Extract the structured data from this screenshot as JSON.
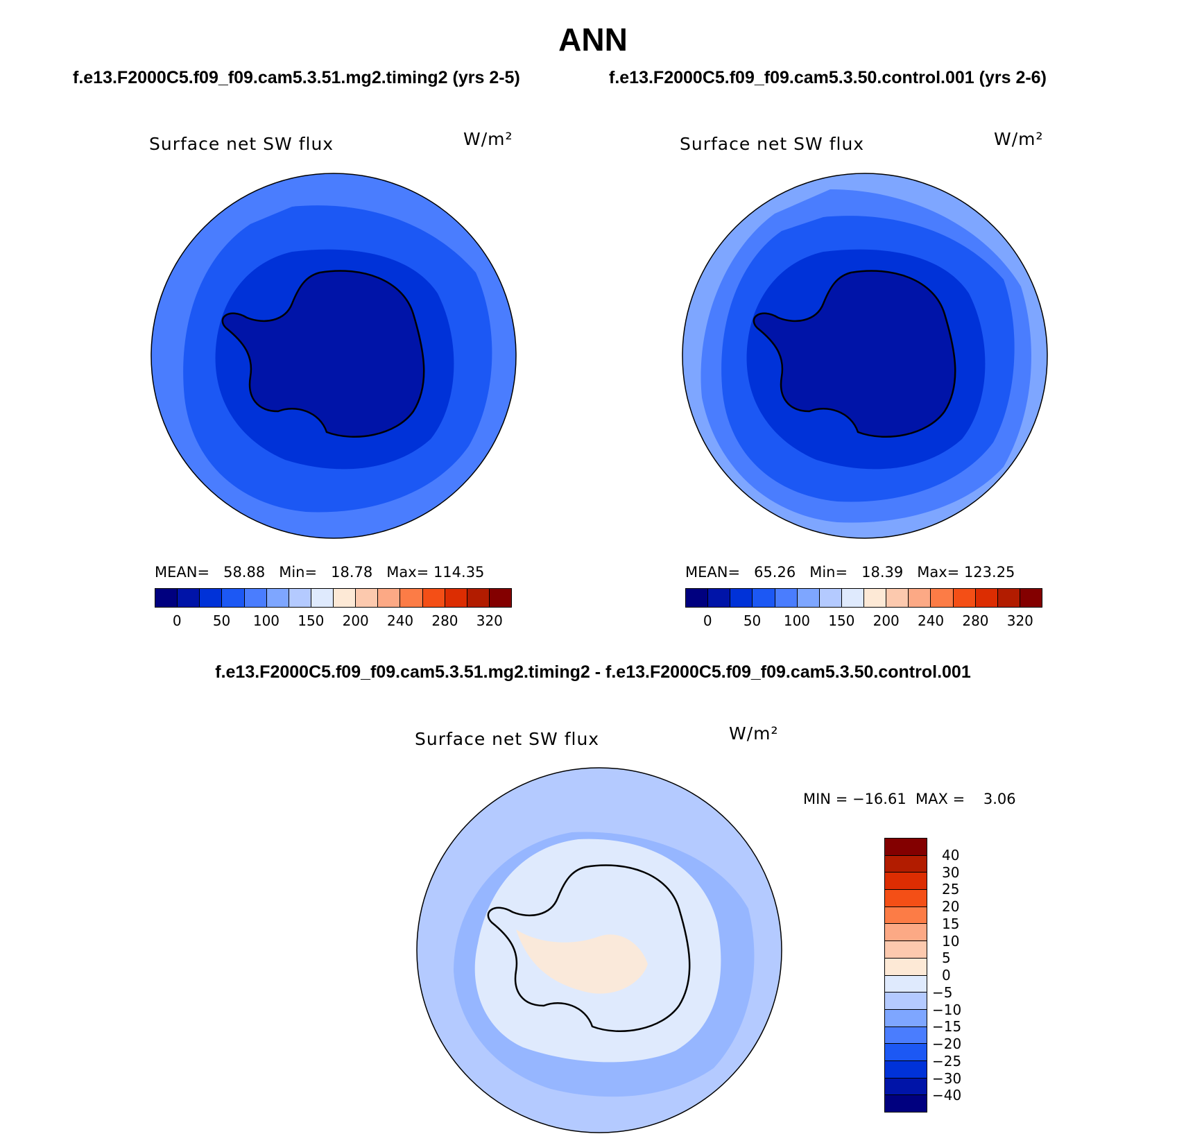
{
  "title": "ANN",
  "case_a_title": "f.e13.F2000C5.f09_f09.cam5.3.51.mg2.timing2 (yrs 2-5)",
  "case_b_title": "f.e13.F2000C5.f09_f09.cam5.3.50.control.001 (yrs 2-6)",
  "diff_title": "f.e13.F2000C5.f09_f09.cam5.3.51.mg2.timing2 - f.e13.F2000C5.f09_f09.cam5.3.50.control.001",
  "panels": [
    {
      "var": "Surface net SW flux",
      "units": "W/m²",
      "stats": "MEAN=   58.88   Min=   18.78   Max= 114.35"
    },
    {
      "var": "Surface net SW flux",
      "units": "W/m²",
      "stats": "MEAN=   65.26   Min=   18.39   Max= 123.25"
    }
  ],
  "diff_panel": {
    "var": "Surface net SW flux",
    "units": "W/m²",
    "stats": "MIN = −16.61  MAX =    3.06"
  },
  "colors": {
    "abs_scale": [
      "#00007f",
      "#0014a8",
      "#0032d8",
      "#1c58f4",
      "#4a7dfe",
      "#7ea6ff",
      "#b4caff",
      "#dfeafd",
      "#fde9d6",
      "#fcc9ae",
      "#fca985",
      "#fc7c46",
      "#f44f16",
      "#dc2d02",
      "#b21c00",
      "#830000"
    ],
    "diff_scale": [
      "#830000",
      "#b21c00",
      "#dc2d02",
      "#f44f16",
      "#fc7c46",
      "#fca985",
      "#fcc9ae",
      "#fde9d6",
      "#dfeafd",
      "#b4caff",
      "#7ea6ff",
      "#4a7dfe",
      "#1c58f4",
      "#0032d8",
      "#0014a8",
      "#00007f"
    ]
  },
  "abs_ticks": [
    "0",
    "50",
    "100",
    "150",
    "200",
    "240",
    "280",
    "320"
  ],
  "diff_ticks": [
    "40",
    "30",
    "25",
    "20",
    "15",
    "10",
    "5",
    "0",
    "−5",
    "−10",
    "−15",
    "−20",
    "−25",
    "−30",
    "−40"
  ]
}
